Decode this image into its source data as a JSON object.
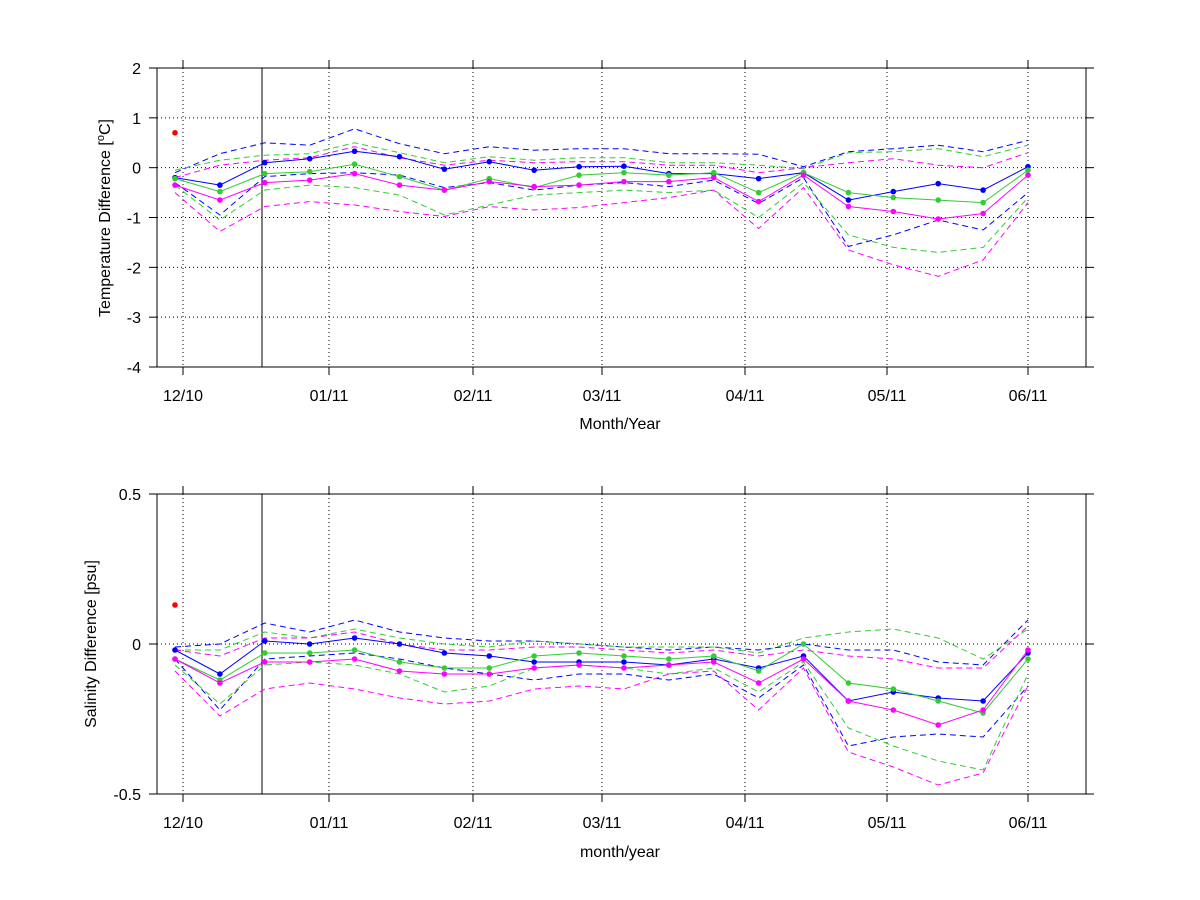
{
  "chart_data": [
    {
      "type": "line",
      "xlabel": "Month/Year",
      "ylabel": "Temperature Difference [°C]",
      "ylabel_parts": {
        "pre": "Temperature Difference [",
        "sup": "o",
        "post": "C]"
      },
      "ylim": [
        -4,
        2
      ],
      "yticks": [
        -4,
        -3,
        -2,
        -1,
        0,
        1,
        2
      ],
      "xticks": [
        "12/10",
        "01/11",
        "02/11",
        "03/11",
        "04/11",
        "05/11",
        "06/11"
      ],
      "grid": true,
      "outlier": {
        "x": 0,
        "y": 0.7,
        "color": "#ff0000"
      },
      "series": [
        {
          "color": "#0000ff",
          "style": "solid",
          "values": [
            -0.2,
            -0.35,
            0.1,
            0.18,
            0.33,
            0.22,
            -0.03,
            0.12,
            -0.05,
            0.02,
            0.03,
            -0.12,
            -0.12,
            -0.22,
            -0.1,
            -0.65,
            -0.48,
            -0.32,
            -0.45,
            0.02
          ]
        },
        {
          "color": "#33cc33",
          "style": "solid",
          "values": [
            -0.22,
            -0.48,
            -0.12,
            -0.08,
            0.07,
            -0.18,
            -0.45,
            -0.22,
            -0.4,
            -0.15,
            -0.1,
            -0.15,
            -0.1,
            -0.5,
            -0.1,
            -0.5,
            -0.6,
            -0.65,
            -0.7,
            -0.05
          ]
        },
        {
          "color": "#ff00ff",
          "style": "solid",
          "values": [
            -0.35,
            -0.65,
            -0.3,
            -0.25,
            -0.12,
            -0.35,
            -0.45,
            -0.28,
            -0.38,
            -0.35,
            -0.28,
            -0.28,
            -0.2,
            -0.68,
            -0.15,
            -0.78,
            -0.88,
            -1.03,
            -0.92,
            -0.15
          ]
        },
        {
          "color": "#0000ff",
          "style": "dashed",
          "values": [
            -0.1,
            0.28,
            0.5,
            0.45,
            0.78,
            0.48,
            0.28,
            0.42,
            0.35,
            0.38,
            0.38,
            0.28,
            0.28,
            0.27,
            0.02,
            0.32,
            0.38,
            0.45,
            0.32,
            0.55
          ]
        },
        {
          "color": "#0000ff",
          "style": "dashed",
          "values": [
            -0.3,
            -0.95,
            -0.18,
            -0.12,
            -0.1,
            -0.15,
            -0.4,
            -0.3,
            -0.45,
            -0.35,
            -0.3,
            -0.38,
            -0.25,
            -0.72,
            -0.2,
            -1.58,
            -1.35,
            -1.05,
            -1.25,
            -0.5
          ]
        },
        {
          "color": "#33cc33",
          "style": "dashed",
          "values": [
            -0.05,
            0.15,
            0.25,
            0.28,
            0.5,
            0.3,
            0.1,
            0.22,
            0.15,
            0.2,
            0.2,
            0.1,
            0.1,
            0.05,
            -0.02,
            0.3,
            0.32,
            0.38,
            0.22,
            0.45
          ]
        },
        {
          "color": "#33cc33",
          "style": "dashed",
          "values": [
            -0.35,
            -1.05,
            -0.45,
            -0.35,
            -0.4,
            -0.55,
            -0.95,
            -0.75,
            -0.55,
            -0.5,
            -0.45,
            -0.5,
            -0.45,
            -1.0,
            -0.3,
            -1.35,
            -1.6,
            -1.7,
            -1.6,
            -0.6
          ]
        },
        {
          "color": "#ff00ff",
          "style": "dashed",
          "values": [
            -0.2,
            0.05,
            0.15,
            0.2,
            0.42,
            0.2,
            0.05,
            0.15,
            0.1,
            0.12,
            0.12,
            0.05,
            0.05,
            -0.1,
            0.0,
            0.1,
            0.18,
            0.05,
            0.0,
            0.3
          ]
        },
        {
          "color": "#ff00ff",
          "style": "dashed",
          "values": [
            -0.5,
            -1.28,
            -0.78,
            -0.68,
            -0.75,
            -0.88,
            -0.98,
            -0.78,
            -0.85,
            -0.8,
            -0.7,
            -0.6,
            -0.45,
            -1.22,
            -0.4,
            -1.65,
            -1.95,
            -2.18,
            -1.85,
            -0.7
          ]
        }
      ]
    },
    {
      "type": "line",
      "xlabel": "month/year",
      "ylabel": "Salinity Difference [psu]",
      "ylim": [
        -0.5,
        0.5
      ],
      "yticks": [
        -0.5,
        0,
        0.5
      ],
      "ytick_labels": [
        "-0.5",
        "0",
        "0.5"
      ],
      "xticks": [
        "12/10",
        "01/11",
        "02/11",
        "03/11",
        "04/11",
        "05/11",
        "06/11"
      ],
      "grid": true,
      "outlier": {
        "x": 0,
        "y": 0.13,
        "color": "#ff0000"
      },
      "series": [
        {
          "color": "#0000ff",
          "style": "solid",
          "values": [
            -0.02,
            -0.1,
            0.01,
            0.0,
            0.02,
            0.0,
            -0.03,
            -0.04,
            -0.06,
            -0.06,
            -0.06,
            -0.07,
            -0.05,
            -0.08,
            -0.04,
            -0.19,
            -0.16,
            -0.18,
            -0.19,
            -0.03
          ]
        },
        {
          "color": "#33cc33",
          "style": "solid",
          "values": [
            -0.05,
            -0.12,
            -0.03,
            -0.03,
            -0.02,
            -0.06,
            -0.08,
            -0.08,
            -0.04,
            -0.03,
            -0.04,
            -0.05,
            -0.04,
            -0.09,
            0.0,
            -0.13,
            -0.15,
            -0.19,
            -0.23,
            -0.05
          ]
        },
        {
          "color": "#ff00ff",
          "style": "solid",
          "values": [
            -0.05,
            -0.13,
            -0.06,
            -0.06,
            -0.05,
            -0.09,
            -0.1,
            -0.1,
            -0.08,
            -0.07,
            -0.08,
            -0.07,
            -0.06,
            -0.13,
            -0.05,
            -0.19,
            -0.22,
            -0.27,
            -0.22,
            -0.02
          ]
        },
        {
          "color": "#0000ff",
          "style": "dashed",
          "values": [
            -0.01,
            0.0,
            0.07,
            0.04,
            0.08,
            0.04,
            0.02,
            0.01,
            0.01,
            0.0,
            -0.01,
            -0.02,
            -0.01,
            -0.02,
            0.0,
            -0.02,
            -0.02,
            -0.06,
            -0.07,
            0.08
          ]
        },
        {
          "color": "#0000ff",
          "style": "dashed",
          "values": [
            -0.05,
            -0.22,
            -0.05,
            -0.04,
            -0.03,
            -0.05,
            -0.08,
            -0.1,
            -0.12,
            -0.1,
            -0.1,
            -0.12,
            -0.1,
            -0.18,
            -0.07,
            -0.34,
            -0.31,
            -0.3,
            -0.31,
            -0.14
          ]
        },
        {
          "color": "#33cc33",
          "style": "dashed",
          "values": [
            -0.02,
            -0.02,
            0.04,
            0.02,
            0.05,
            0.02,
            0.0,
            -0.01,
            0.01,
            0.0,
            -0.01,
            -0.01,
            -0.01,
            -0.03,
            0.02,
            0.04,
            0.05,
            0.02,
            -0.05,
            0.05
          ]
        },
        {
          "color": "#33cc33",
          "style": "dashed",
          "values": [
            -0.07,
            -0.2,
            -0.07,
            -0.06,
            -0.07,
            -0.1,
            -0.16,
            -0.14,
            -0.08,
            -0.07,
            -0.08,
            -0.1,
            -0.08,
            -0.16,
            -0.06,
            -0.28,
            -0.34,
            -0.39,
            -0.42,
            -0.1
          ]
        },
        {
          "color": "#ff00ff",
          "style": "dashed",
          "values": [
            -0.02,
            -0.04,
            0.02,
            0.02,
            0.04,
            0.0,
            -0.02,
            -0.02,
            -0.01,
            -0.01,
            -0.02,
            -0.03,
            -0.02,
            -0.04,
            -0.02,
            -0.04,
            -0.05,
            -0.08,
            -0.08,
            0.06
          ]
        },
        {
          "color": "#ff00ff",
          "style": "dashed",
          "values": [
            -0.09,
            -0.24,
            -0.15,
            -0.13,
            -0.15,
            -0.18,
            -0.2,
            -0.19,
            -0.15,
            -0.14,
            -0.15,
            -0.1,
            -0.09,
            -0.22,
            -0.08,
            -0.36,
            -0.41,
            -0.47,
            -0.43,
            -0.14
          ]
        }
      ]
    }
  ]
}
